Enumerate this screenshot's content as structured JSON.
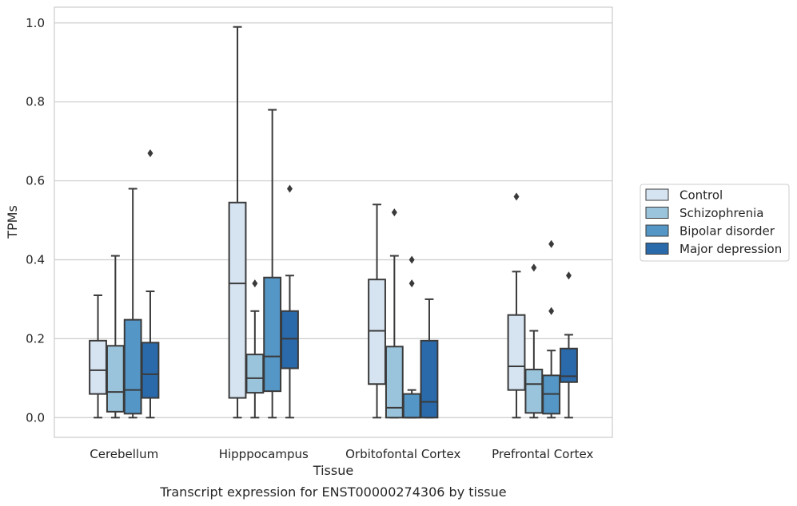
{
  "chart_data": {
    "type": "box",
    "xlabel": "Tissue",
    "ylabel": "TPMs",
    "caption": "Transcript expression for ENST00000274306 by tissue",
    "ylim": [
      -0.05,
      1.04
    ],
    "yticks": [
      0.0,
      0.2,
      0.4,
      0.6,
      0.8,
      1.0
    ],
    "ytick_labels": [
      "0.0",
      "0.2",
      "0.4",
      "0.6",
      "0.8",
      "1.0"
    ],
    "grid": "horizontal",
    "legend_position": "right",
    "categories": [
      "Cerebellum",
      "Hipppocampus",
      "Orbitofontal Cortex",
      "Prefrontal Cortex"
    ],
    "series": [
      {
        "name": "Control",
        "color": "#d6e4f2",
        "boxes": [
          {
            "whisker_low": 0.0,
            "q1": 0.06,
            "median": 0.12,
            "q3": 0.195,
            "whisker_high": 0.31,
            "outliers": []
          },
          {
            "whisker_low": 0.0,
            "q1": 0.05,
            "median": 0.34,
            "q3": 0.545,
            "whisker_high": 0.99,
            "outliers": []
          },
          {
            "whisker_low": 0.0,
            "q1": 0.085,
            "median": 0.22,
            "q3": 0.35,
            "whisker_high": 0.54,
            "outliers": []
          },
          {
            "whisker_low": 0.0,
            "q1": 0.07,
            "median": 0.13,
            "q3": 0.26,
            "whisker_high": 0.37,
            "outliers": [
              0.56
            ]
          }
        ]
      },
      {
        "name": "Schizophrenia",
        "color": "#9ac4dc",
        "boxes": [
          {
            "whisker_low": 0.0,
            "q1": 0.015,
            "median": 0.065,
            "q3": 0.182,
            "whisker_high": 0.41,
            "outliers": []
          },
          {
            "whisker_low": 0.0,
            "q1": 0.063,
            "median": 0.1,
            "q3": 0.16,
            "whisker_high": 0.27,
            "outliers": [
              0.34
            ]
          },
          {
            "whisker_low": 0.0,
            "q1": 0.0,
            "median": 0.025,
            "q3": 0.18,
            "whisker_high": 0.41,
            "outliers": [
              0.52
            ]
          },
          {
            "whisker_low": 0.0,
            "q1": 0.012,
            "median": 0.085,
            "q3": 0.122,
            "whisker_high": 0.22,
            "outliers": [
              0.38
            ]
          }
        ]
      },
      {
        "name": "Bipolar disorder",
        "color": "#5496c6",
        "boxes": [
          {
            "whisker_low": 0.0,
            "q1": 0.01,
            "median": 0.07,
            "q3": 0.248,
            "whisker_high": 0.58,
            "outliers": []
          },
          {
            "whisker_low": 0.0,
            "q1": 0.067,
            "median": 0.155,
            "q3": 0.355,
            "whisker_high": 0.78,
            "outliers": []
          },
          {
            "whisker_low": 0.0,
            "q1": 0.0,
            "median": 0.0,
            "q3": 0.06,
            "whisker_high": 0.07,
            "outliers": [
              0.34,
              0.4
            ]
          },
          {
            "whisker_low": 0.0,
            "q1": 0.01,
            "median": 0.06,
            "q3": 0.107,
            "whisker_high": 0.17,
            "outliers": [
              0.27,
              0.44
            ]
          }
        ]
      },
      {
        "name": "Major depression",
        "color": "#2a6aaa",
        "boxes": [
          {
            "whisker_low": 0.0,
            "q1": 0.05,
            "median": 0.11,
            "q3": 0.19,
            "whisker_high": 0.32,
            "outliers": [
              0.67
            ]
          },
          {
            "whisker_low": 0.0,
            "q1": 0.125,
            "median": 0.2,
            "q3": 0.27,
            "whisker_high": 0.36,
            "outliers": [
              0.58
            ]
          },
          {
            "whisker_low": 0.0,
            "q1": 0.0,
            "median": 0.04,
            "q3": 0.195,
            "whisker_high": 0.3,
            "outliers": []
          },
          {
            "whisker_low": 0.0,
            "q1": 0.09,
            "median": 0.105,
            "q3": 0.175,
            "whisker_high": 0.21,
            "outliers": [
              0.36
            ]
          }
        ]
      }
    ]
  }
}
